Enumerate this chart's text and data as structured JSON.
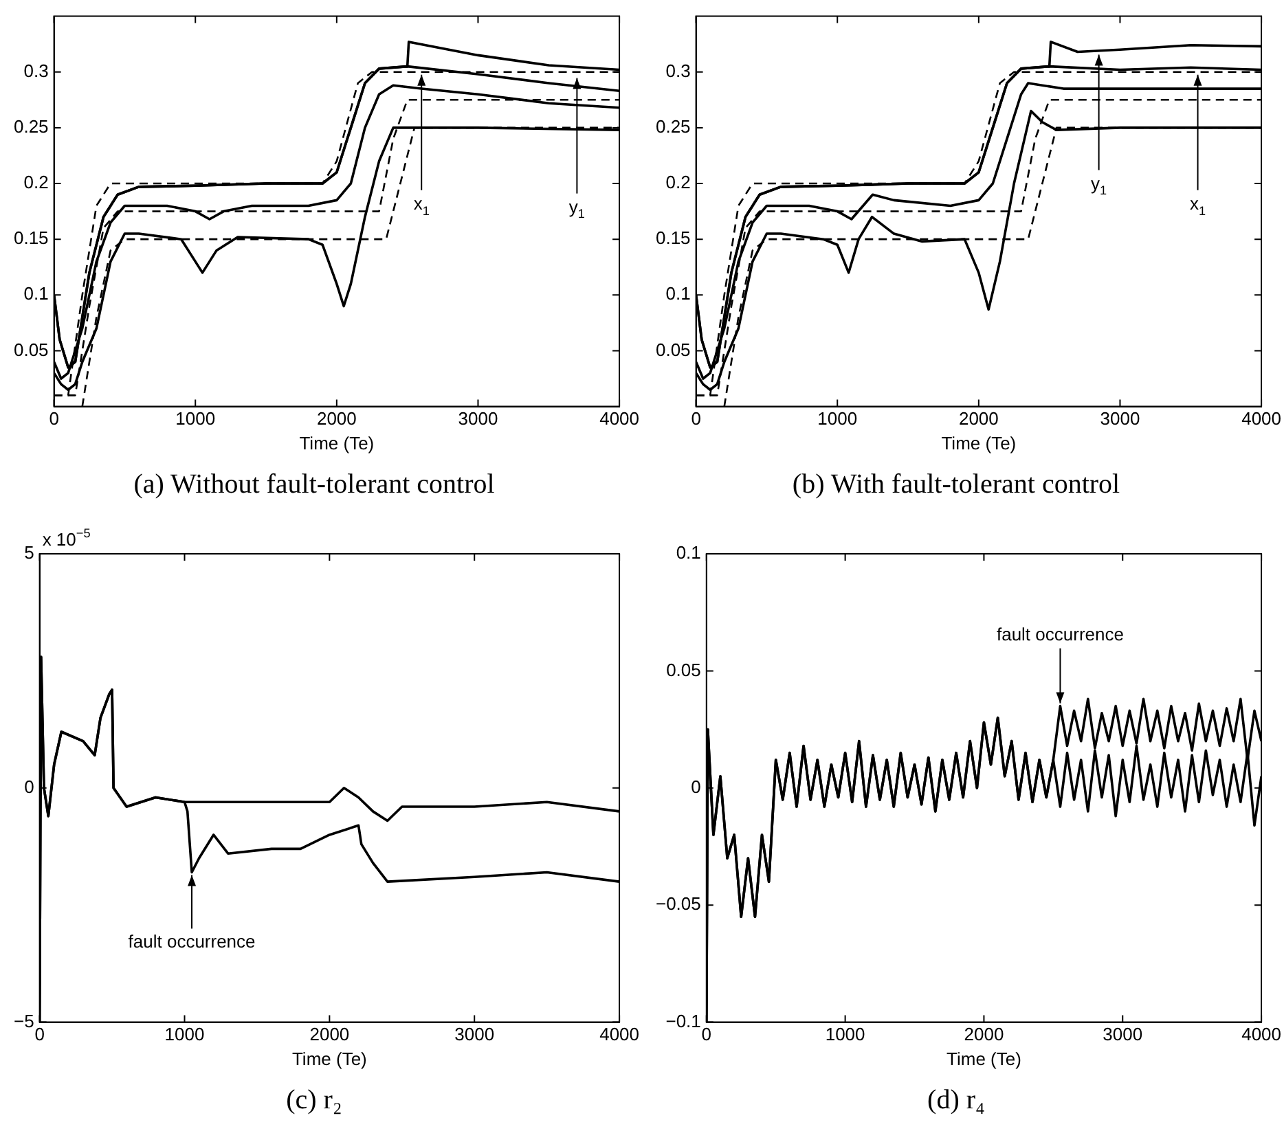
{
  "chart_data": [
    {
      "type": "line",
      "title": "(a) Without fault-tolerant control",
      "xlabel": "Time (Te)",
      "xlim": [
        0,
        4000
      ],
      "xticks": [
        0,
        1000,
        2000,
        3000,
        4000
      ],
      "ylim": [
        0,
        0.35
      ],
      "yticks": [
        0.05,
        0.1,
        0.15,
        0.2,
        0.25,
        0.3
      ],
      "series": [
        {
          "color": "#000000",
          "line_style": "dashed",
          "x": [
            0,
            100,
            200,
            300,
            400,
            1900,
            2000,
            2150,
            2250,
            4000
          ],
          "values": [
            0.01,
            0.01,
            0.1,
            0.18,
            0.2,
            0.2,
            0.22,
            0.29,
            0.3,
            0.3
          ]
        },
        {
          "color": "#000000",
          "line_style": "dashed",
          "x": [
            0,
            150,
            250,
            350,
            450,
            2300,
            2400,
            2500,
            4000
          ],
          "values": [
            0.01,
            0.01,
            0.09,
            0.16,
            0.175,
            0.175,
            0.24,
            0.275,
            0.275
          ]
        },
        {
          "color": "#000000",
          "line_style": "dashed",
          "x": [
            200,
            300,
            400,
            500,
            2350,
            2450,
            2550,
            4000
          ],
          "values": [
            0,
            0.08,
            0.14,
            0.15,
            0.15,
            0.2,
            0.25,
            0.25
          ]
        },
        {
          "color": "#000000",
          "x": [
            0,
            40,
            100,
            150,
            250,
            350,
            450,
            600,
            1000,
            1500,
            1900,
            2000,
            2100,
            2200,
            2300,
            2500,
            2510,
            3000,
            3500,
            4000
          ],
          "values": [
            0.1,
            0.06,
            0.035,
            0.04,
            0.12,
            0.17,
            0.19,
            0.197,
            0.198,
            0.2,
            0.2,
            0.21,
            0.25,
            0.29,
            0.303,
            0.305,
            0.327,
            0.315,
            0.306,
            0.302
          ]
        },
        {
          "color": "#000000",
          "x": [
            0,
            40,
            100,
            150,
            250,
            350,
            450,
            600,
            1000,
            1500,
            1900,
            2000,
            2100,
            2200,
            2300,
            2500,
            3000,
            3500,
            4000
          ],
          "values": [
            0.1,
            0.06,
            0.035,
            0.04,
            0.12,
            0.17,
            0.19,
            0.197,
            0.198,
            0.2,
            0.2,
            0.21,
            0.25,
            0.29,
            0.303,
            0.305,
            0.298,
            0.29,
            0.283
          ]
        },
        {
          "color": "#000000",
          "x": [
            0,
            50,
            100,
            200,
            300,
            400,
            500,
            800,
            1000,
            1100,
            1200,
            1400,
            1800,
            2000,
            2100,
            2200,
            2300,
            2400,
            2600,
            3000,
            3500,
            4000
          ],
          "values": [
            0.04,
            0.025,
            0.03,
            0.07,
            0.13,
            0.165,
            0.18,
            0.18,
            0.175,
            0.168,
            0.175,
            0.18,
            0.18,
            0.185,
            0.2,
            0.25,
            0.28,
            0.288,
            0.285,
            0.28,
            0.272,
            0.268
          ]
        },
        {
          "color": "#000000",
          "x": [
            0,
            50,
            100,
            150,
            200,
            300,
            400,
            500,
            600,
            900,
            1000,
            1050,
            1150,
            1300,
            1800,
            1900,
            2000,
            2050,
            2100,
            2200,
            2300,
            2400,
            2600,
            3000,
            4000
          ],
          "values": [
            0.03,
            0.02,
            0.015,
            0.02,
            0.04,
            0.07,
            0.13,
            0.155,
            0.155,
            0.15,
            0.13,
            0.12,
            0.14,
            0.152,
            0.15,
            0.145,
            0.11,
            0.09,
            0.11,
            0.17,
            0.22,
            0.25,
            0.25,
            0.25,
            0.248
          ]
        }
      ],
      "annotations": [
        {
          "text": "x$_{1}$",
          "x": 2600,
          "y": 0.3
        },
        {
          "text": "y$_{1}$",
          "x": 3700,
          "y": 0.297
        }
      ]
    },
    {
      "type": "line",
      "title": "(b) With fault-tolerant control",
      "xlabel": "Time (Te)",
      "xlim": [
        0,
        4000
      ],
      "xticks": [
        0,
        1000,
        2000,
        3000,
        4000
      ],
      "ylim": [
        0,
        0.35
      ],
      "yticks": [
        0.05,
        0.1,
        0.15,
        0.2,
        0.25,
        0.3
      ],
      "series": [
        {
          "color": "#000000",
          "line_style": "dashed",
          "x": [
            0,
            100,
            200,
            300,
            400,
            1900,
            2000,
            2150,
            2250,
            4000
          ],
          "values": [
            0.01,
            0.01,
            0.1,
            0.18,
            0.2,
            0.2,
            0.22,
            0.29,
            0.3,
            0.3
          ]
        },
        {
          "color": "#000000",
          "line_style": "dashed",
          "x": [
            0,
            150,
            250,
            350,
            450,
            2300,
            2400,
            2500,
            4000
          ],
          "values": [
            0.01,
            0.01,
            0.09,
            0.16,
            0.175,
            0.175,
            0.24,
            0.275,
            0.275
          ]
        },
        {
          "color": "#000000",
          "line_style": "dashed",
          "x": [
            200,
            300,
            400,
            500,
            2350,
            2450,
            2550,
            4000
          ],
          "values": [
            0,
            0.08,
            0.14,
            0.15,
            0.15,
            0.2,
            0.25,
            0.25
          ]
        },
        {
          "color": "#000000",
          "x": [
            0,
            40,
            100,
            150,
            250,
            350,
            450,
            600,
            1000,
            1500,
            1900,
            2000,
            2100,
            2200,
            2300,
            2500,
            2510,
            2700,
            3000,
            3500,
            4000
          ],
          "values": [
            0.1,
            0.06,
            0.035,
            0.04,
            0.12,
            0.17,
            0.19,
            0.197,
            0.198,
            0.2,
            0.2,
            0.21,
            0.25,
            0.29,
            0.303,
            0.305,
            0.327,
            0.318,
            0.32,
            0.324,
            0.323
          ]
        },
        {
          "color": "#000000",
          "x": [
            0,
            40,
            100,
            150,
            250,
            350,
            450,
            600,
            1000,
            1500,
            1900,
            2000,
            2100,
            2200,
            2300,
            2500,
            3000,
            3500,
            4000
          ],
          "values": [
            0.1,
            0.06,
            0.035,
            0.04,
            0.12,
            0.17,
            0.19,
            0.197,
            0.198,
            0.2,
            0.2,
            0.21,
            0.25,
            0.29,
            0.303,
            0.305,
            0.302,
            0.304,
            0.302
          ]
        },
        {
          "color": "#000000",
          "x": [
            0,
            50,
            100,
            200,
            300,
            400,
            500,
            800,
            1000,
            1100,
            1250,
            1400,
            1800,
            2000,
            2100,
            2200,
            2300,
            2350,
            2600,
            3000,
            3500,
            4000
          ],
          "values": [
            0.04,
            0.025,
            0.03,
            0.07,
            0.13,
            0.165,
            0.18,
            0.18,
            0.175,
            0.168,
            0.19,
            0.185,
            0.18,
            0.185,
            0.2,
            0.24,
            0.28,
            0.29,
            0.285,
            0.285,
            0.285,
            0.285
          ]
        },
        {
          "color": "#000000",
          "x": [
            0,
            50,
            100,
            150,
            200,
            300,
            400,
            500,
            600,
            900,
            1000,
            1080,
            1150,
            1245,
            1400,
            1600,
            1900,
            2000,
            2070,
            2150,
            2250,
            2370,
            2450,
            2550,
            3000,
            4000
          ],
          "values": [
            0.03,
            0.02,
            0.015,
            0.02,
            0.04,
            0.07,
            0.13,
            0.155,
            0.155,
            0.15,
            0.145,
            0.12,
            0.15,
            0.17,
            0.155,
            0.148,
            0.15,
            0.12,
            0.087,
            0.13,
            0.2,
            0.265,
            0.255,
            0.248,
            0.25,
            0.25
          ]
        }
      ],
      "annotations": [
        {
          "text": "y$_{1}$",
          "x": 2850,
          "y": 0.318
        },
        {
          "text": "x$_{1}$",
          "x": 3550,
          "y": 0.3
        }
      ]
    },
    {
      "type": "line",
      "title": "(c) r₂",
      "xlabel": "Time (Te)",
      "xlim": [
        0,
        4000
      ],
      "xticks": [
        0,
        1000,
        2000,
        3000,
        4000
      ],
      "ylim": [
        -5,
        5
      ],
      "yticks": [
        {
          "value": -5,
          "label": "−5"
        },
        0,
        5
      ],
      "series": [
        {
          "color": "#000000",
          "x": [
            0,
            10,
            30,
            60,
            100,
            150,
            300,
            380,
            420,
            480,
            500,
            510,
            600,
            800,
            1000,
            1500,
            2000,
            2100,
            2200,
            2300,
            2400,
            2500,
            3000,
            3500,
            4000
          ],
          "values": [
            -5,
            2.8,
            0,
            -0.6,
            0.5,
            1.2,
            1.0,
            0.7,
            1.5,
            2.0,
            2.1,
            0,
            -0.4,
            -0.2,
            -0.3,
            -0.3,
            -0.3,
            0,
            -0.2,
            -0.5,
            -0.7,
            -0.4,
            -0.4,
            -0.3,
            -0.5
          ]
        },
        {
          "color": "#000000",
          "x": [
            0,
            10,
            30,
            60,
            100,
            150,
            300,
            380,
            420,
            480,
            500,
            510,
            600,
            800,
            1000,
            1020,
            1050,
            1100,
            1200,
            1300,
            1600,
            1800,
            2000,
            2200,
            2220,
            2300,
            2400,
            3000,
            3500,
            4000
          ],
          "values": [
            -5,
            2.8,
            0,
            -0.6,
            0.5,
            1.2,
            1.0,
            0.7,
            1.5,
            2.0,
            2.1,
            0,
            -0.4,
            -0.2,
            -0.3,
            -0.5,
            -1.8,
            -1.5,
            -1.0,
            -1.4,
            -1.3,
            -1.3,
            -1.0,
            -0.8,
            -1.2,
            -1.6,
            -2.0,
            -1.9,
            -1.8,
            -2.0
          ]
        }
      ],
      "annotations": [
        "x 10$^{−5}$",
        {
          "text": "fault occurrence",
          "x": 1050,
          "y": -1.8
        }
      ]
    },
    {
      "type": "line",
      "title": "(d) r₄",
      "xlabel": "Time (Te)",
      "xlim": [
        0,
        4000
      ],
      "xticks": [
        0,
        1000,
        2000,
        3000,
        4000
      ],
      "ylim": [
        -0.1,
        0.1
      ],
      "yticks": [
        {
          "value": -0.1,
          "label": "−0.1"
        },
        {
          "value": -0.05,
          "label": "−0.05"
        },
        0,
        0.05,
        0.1
      ],
      "x": [
        0,
        10,
        50,
        100,
        150,
        200,
        250,
        300,
        350,
        400,
        450,
        500,
        550,
        600,
        650,
        700,
        750,
        800,
        850,
        900,
        950,
        1000,
        1050,
        1100,
        1150,
        1200,
        1250,
        1300,
        1350,
        1400,
        1450,
        1500,
        1550,
        1600,
        1650,
        1700,
        1750,
        1800,
        1850,
        1900,
        1950,
        2000,
        2050,
        2100,
        2150,
        2200,
        2250,
        2300,
        2350,
        2400,
        2450,
        2500,
        2550,
        2600,
        2650,
        2700,
        2750,
        2800,
        2850,
        2900,
        2950,
        3000,
        3050,
        3100,
        3150,
        3200,
        3250,
        3300,
        3350,
        3400,
        3450,
        3500,
        3550,
        3600,
        3650,
        3700,
        3750,
        3800,
        3850,
        3900,
        3950,
        4000
      ],
      "series": [
        {
          "color": "#000000",
          "values": [
            -0.1,
            0.025,
            -0.02,
            0.005,
            -0.03,
            -0.02,
            -0.055,
            -0.03,
            -0.055,
            -0.02,
            -0.04,
            0.012,
            -0.005,
            0.015,
            -0.008,
            0.018,
            -0.005,
            0.012,
            -0.008,
            0.01,
            -0.004,
            0.015,
            -0.006,
            0.02,
            -0.008,
            0.014,
            -0.005,
            0.012,
            -0.008,
            0.015,
            -0.004,
            0.01,
            -0.007,
            0.013,
            -0.01,
            0.012,
            -0.005,
            0.015,
            -0.004,
            0.02,
            0,
            0.028,
            0.01,
            0.03,
            0.005,
            0.02,
            -0.005,
            0.015,
            -0.006,
            0.012,
            -0.004,
            0.012,
            0.035,
            0.018,
            0.033,
            0.02,
            0.038,
            0.017,
            0.032,
            0.02,
            0.035,
            0.018,
            0.033,
            0.019,
            0.038,
            0.02,
            0.033,
            0.017,
            0.035,
            0.02,
            0.032,
            0.016,
            0.036,
            0.02,
            0.033,
            0.018,
            0.034,
            0.02,
            0.038,
            0.012,
            0.033,
            0.02
          ]
        },
        {
          "color": "#000000",
          "values": [
            -0.1,
            0.025,
            -0.02,
            0.005,
            -0.03,
            -0.02,
            -0.055,
            -0.03,
            -0.055,
            -0.02,
            -0.04,
            0.012,
            -0.005,
            0.015,
            -0.008,
            0.018,
            -0.005,
            0.012,
            -0.008,
            0.01,
            -0.004,
            0.015,
            -0.006,
            0.02,
            -0.008,
            0.014,
            -0.005,
            0.012,
            -0.008,
            0.015,
            -0.004,
            0.01,
            -0.007,
            0.013,
            -0.01,
            0.012,
            -0.005,
            0.015,
            -0.004,
            0.02,
            0,
            0.028,
            0.01,
            0.03,
            0.005,
            0.02,
            -0.005,
            0.015,
            -0.006,
            0.012,
            -0.004,
            0.012,
            -0.008,
            0.015,
            -0.005,
            0.012,
            -0.01,
            0.016,
            -0.004,
            0.014,
            -0.012,
            0.012,
            -0.006,
            0.018,
            -0.005,
            0.01,
            -0.008,
            0.015,
            -0.004,
            0.012,
            -0.01,
            0.014,
            -0.006,
            0.016,
            -0.003,
            0.012,
            -0.008,
            0.01,
            -0.006,
            0.015,
            -0.016,
            0.005
          ]
        }
      ],
      "annotations": [
        {
          "text": "fault occurrence",
          "x": 2550,
          "y": 0.035
        }
      ]
    }
  ]
}
